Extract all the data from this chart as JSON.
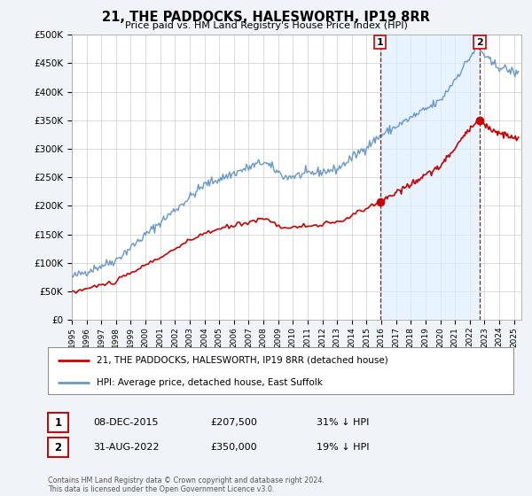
{
  "title": "21, THE PADDOCKS, HALESWORTH, IP19 8RR",
  "subtitle": "Price paid vs. HM Land Registry's House Price Index (HPI)",
  "ylim": [
    0,
    500000
  ],
  "yticks": [
    0,
    50000,
    100000,
    150000,
    200000,
    250000,
    300000,
    350000,
    400000,
    450000,
    500000
  ],
  "xlim_start": 1995.0,
  "xlim_end": 2025.5,
  "sale1_date": 2015.92,
  "sale1_price": 207500,
  "sale2_date": 2022.67,
  "sale2_price": 350000,
  "legend_property": "21, THE PADDOCKS, HALESWORTH, IP19 8RR (detached house)",
  "legend_hpi": "HPI: Average price, detached house, East Suffolk",
  "table_row1": [
    "1",
    "08-DEC-2015",
    "£207,500",
    "31% ↓ HPI"
  ],
  "table_row2": [
    "2",
    "31-AUG-2022",
    "£350,000",
    "19% ↓ HPI"
  ],
  "footer": "Contains HM Land Registry data © Crown copyright and database right 2024.\nThis data is licensed under the Open Government Licence v3.0.",
  "property_color": "#cc0000",
  "hpi_color": "#6699cc",
  "shade_color": "#ddeeff",
  "dashed_line_color": "#cc0000",
  "background_color": "#f0f4f8",
  "grid_color": "#cccccc"
}
